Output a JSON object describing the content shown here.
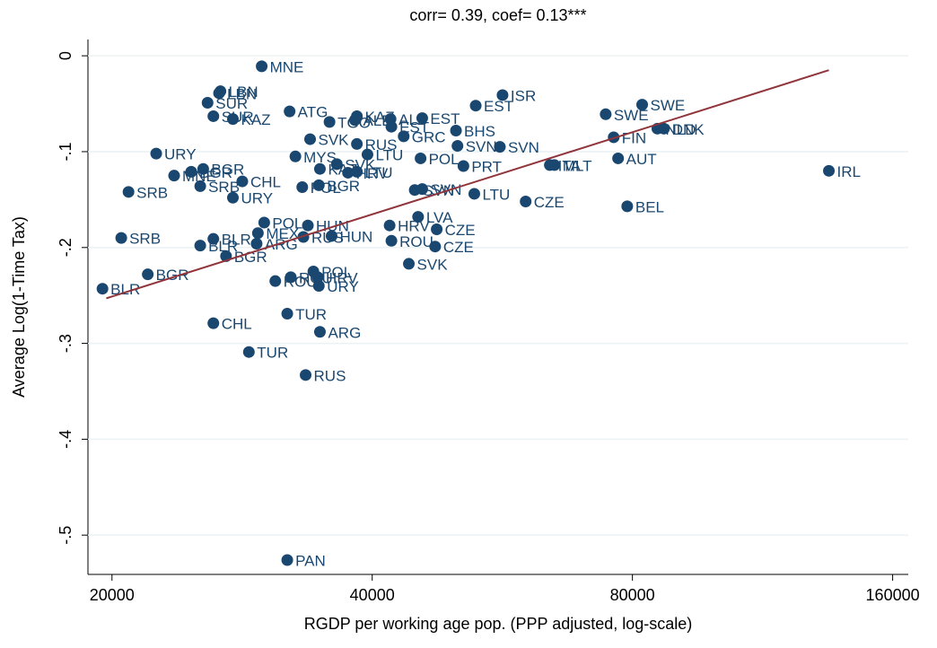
{
  "chart_data": {
    "type": "scatter",
    "title": "corr= 0.39, coef= 0.13***",
    "x_label": "RGDP per working age pop. (PPP adjusted, log-scale)",
    "y_label": "Average Log(1-Time Tax)",
    "x_scale": "log",
    "grid": true,
    "color": "#1a476f",
    "xlim": [
      18760,
      166800
    ],
    "ylim": [
      -0.541,
      0.017
    ],
    "xticks": [
      20000,
      40000,
      80000,
      160000
    ],
    "yticks": [
      {
        "value": 0,
        "label": "0"
      },
      {
        "value": -0.1,
        "label": "-.1"
      },
      {
        "value": -0.2,
        "label": "-.2"
      },
      {
        "value": -0.3,
        "label": "-.3"
      },
      {
        "value": -0.4,
        "label": "-.4"
      },
      {
        "value": -0.5,
        "label": "-.5"
      }
    ],
    "labels": [
      "MNE",
      "LBN",
      "LBN",
      "SUR",
      "SUR",
      "KAZ",
      "ATG",
      "TGO",
      "KAZ",
      "ALB",
      "ALB",
      "EST",
      "EST",
      "EST",
      "ISR",
      "SWE",
      "SWE",
      "NLD",
      "DNK",
      "FIN",
      "BHS",
      "GRC",
      "SVK",
      "RUS",
      "SVN",
      "SVN",
      "URY",
      "LTU",
      "MYS",
      "POL",
      "AUT",
      "PRT",
      "ITA",
      "MLT",
      "IRL",
      "LTU",
      "MNE",
      "BGR",
      "BGR",
      "CHL",
      "SRB",
      "POL",
      "BGR",
      "KAZ",
      "SVK",
      "HRV",
      "SRB",
      "URY",
      "SVN",
      "SVN",
      "LTU",
      "CZE",
      "BEL",
      "LVA",
      "POL",
      "HUN",
      "HRV",
      "CZE",
      "HUN",
      "MEX",
      "RUS",
      "ROU",
      "SRB",
      "BLR",
      "BLR",
      "ARG",
      "CZE",
      "BGR",
      "SVK",
      "BGR",
      "BLR",
      "ROU",
      "POL",
      "URY",
      "HRV",
      "ROU",
      "TUR",
      "ARG",
      "CHL",
      "TUR",
      "RUS",
      "PAN"
    ],
    "x": [
      29800,
      26700,
      26600,
      25800,
      26200,
      27600,
      32100,
      35700,
      38400,
      38200,
      42000,
      42100,
      45700,
      52700,
      56600,
      74500,
      82100,
      85500,
      87000,
      76100,
      50000,
      43500,
      33900,
      38400,
      50200,
      56200,
      22500,
      39500,
      32600,
      45500,
      77000,
      51000,
      64200,
      65000,
      135000,
      38400,
      23600,
      25500,
      24700,
      28300,
      25300,
      33200,
      34700,
      34800,
      36400,
      37500,
      20900,
      27600,
      44800,
      45700,
      52500,
      60200,
      78900,
      45200,
      30000,
      33700,
      41900,
      47500,
      35900,
      29500,
      33300,
      42100,
      20500,
      26200,
      25300,
      29400,
      47300,
      27100,
      44100,
      22000,
      19500,
      30900,
      34200,
      34700,
      34600,
      32200,
      31900,
      34800,
      26200,
      28800,
      33500,
      31900
    ],
    "values": [
      -0.011,
      -0.037,
      -0.039,
      -0.049,
      -0.063,
      -0.066,
      -0.058,
      -0.069,
      -0.063,
      -0.067,
      -0.066,
      -0.074,
      -0.065,
      -0.052,
      -0.041,
      -0.061,
      -0.051,
      -0.076,
      -0.076,
      -0.085,
      -0.078,
      -0.084,
      -0.087,
      -0.092,
      -0.094,
      -0.095,
      -0.102,
      -0.103,
      -0.105,
      -0.107,
      -0.107,
      -0.115,
      -0.114,
      -0.114,
      -0.12,
      -0.121,
      -0.125,
      -0.118,
      -0.121,
      -0.131,
      -0.136,
      -0.137,
      -0.135,
      -0.118,
      -0.113,
      -0.122,
      -0.142,
      -0.148,
      -0.14,
      -0.139,
      -0.144,
      -0.152,
      -0.157,
      -0.168,
      -0.174,
      -0.177,
      -0.177,
      -0.181,
      -0.188,
      -0.185,
      -0.189,
      -0.193,
      -0.19,
      -0.191,
      -0.198,
      -0.196,
      -0.199,
      -0.209,
      -0.217,
      -0.228,
      -0.243,
      -0.235,
      -0.225,
      -0.24,
      -0.231,
      -0.231,
      -0.269,
      -0.288,
      -0.279,
      -0.309,
      -0.333,
      -0.526
    ],
    "fit": {
      "color": "#90353b",
      "x": [
        19700,
        135000
      ],
      "y": [
        -0.253,
        -0.015
      ]
    }
  }
}
